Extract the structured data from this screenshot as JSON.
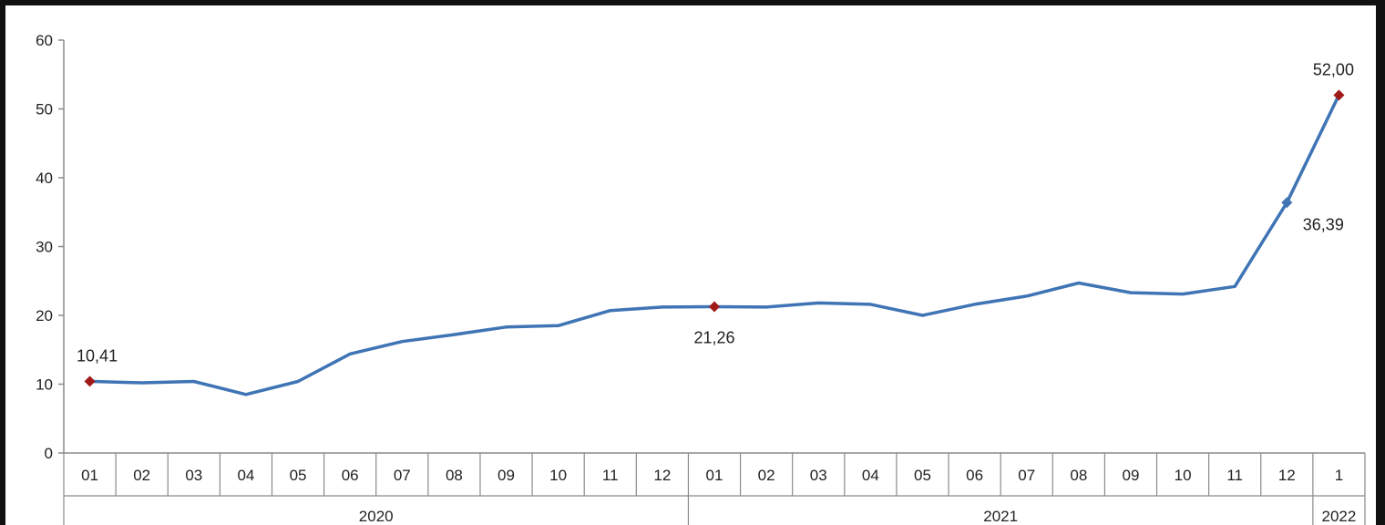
{
  "chart_data": {
    "type": "line",
    "title": "",
    "xlabel": "",
    "ylabel": "",
    "ylim": [
      0,
      60
    ],
    "yticks": [
      0,
      10,
      20,
      30,
      40,
      50,
      60
    ],
    "grid": false,
    "legend": "none",
    "categories": [
      "01",
      "02",
      "03",
      "04",
      "05",
      "06",
      "07",
      "08",
      "09",
      "10",
      "11",
      "12",
      "01",
      "02",
      "03",
      "04",
      "05",
      "06",
      "07",
      "08",
      "09",
      "10",
      "11",
      "12",
      "1"
    ],
    "groups": [
      {
        "label": "2020",
        "count": 12
      },
      {
        "label": "2021",
        "count": 12
      },
      {
        "label": "2022",
        "count": 1
      }
    ],
    "series": [
      {
        "values": [
          10.41,
          10.2,
          10.4,
          8.5,
          10.4,
          14.4,
          16.2,
          17.2,
          18.3,
          18.5,
          20.7,
          21.2,
          21.26,
          21.2,
          21.8,
          21.6,
          20.0,
          21.6,
          22.8,
          24.7,
          23.3,
          23.1,
          24.2,
          36.39,
          52.0
        ],
        "color": "#3F74B5"
      }
    ],
    "annotations": [
      {
        "index": 0,
        "text": "10,41",
        "color": "#A11A1A"
      },
      {
        "index": 12,
        "text": "21,26",
        "color": "#A11A1A"
      },
      {
        "index": 23,
        "text": "36,39",
        "color": "#3F74B5"
      },
      {
        "index": 24,
        "text": "52,00",
        "color": "#A11A1A"
      }
    ]
  }
}
